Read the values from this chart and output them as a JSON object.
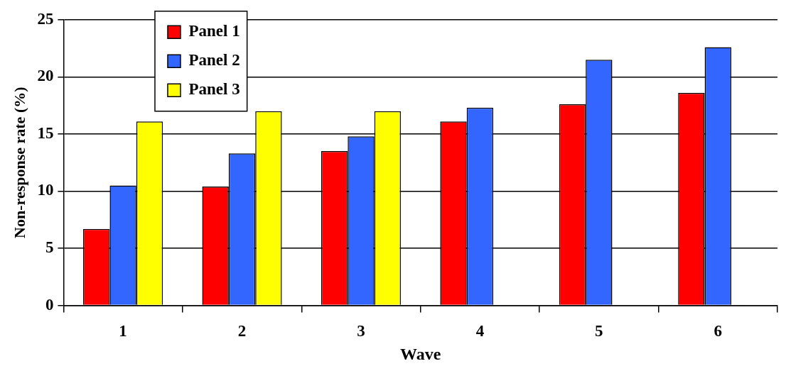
{
  "chart_data": {
    "type": "bar",
    "xlabel": "Wave",
    "ylabel": "Non-response rate (%)",
    "categories": [
      "1",
      "2",
      "3",
      "4",
      "5",
      "6"
    ],
    "series": [
      {
        "name": "Panel 1",
        "color": "#ff0000",
        "values": [
          6.7,
          10.4,
          13.5,
          16.1,
          17.6,
          18.6
        ]
      },
      {
        "name": "Panel 2",
        "color": "#3366ff",
        "values": [
          10.5,
          13.3,
          14.8,
          17.3,
          21.5,
          22.6
        ]
      },
      {
        "name": "Panel 3",
        "color": "#ffff00",
        "values": [
          16.1,
          17.0,
          17.0,
          null,
          null,
          null
        ]
      }
    ],
    "ylim": [
      0,
      25
    ],
    "yticks": [
      0,
      5,
      10,
      15,
      20,
      25
    ],
    "grid": "y",
    "legend": "top left"
  }
}
